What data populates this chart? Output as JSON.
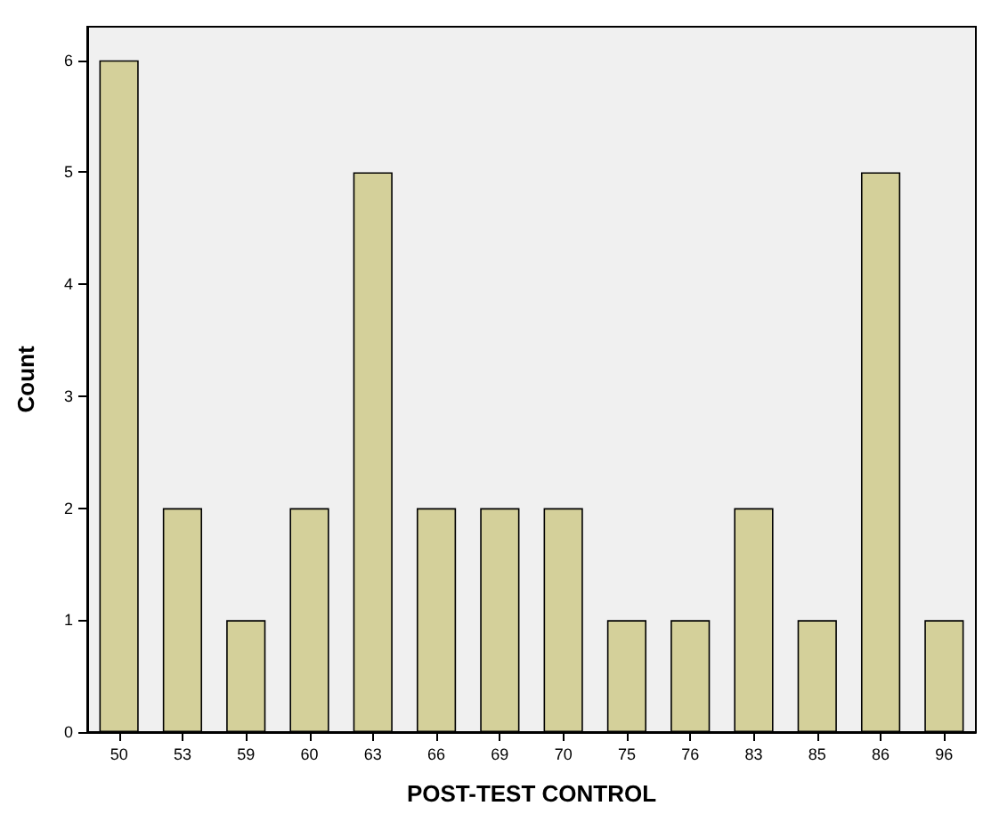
{
  "chart_data": {
    "type": "bar",
    "xlabel": "POST-TEST CONTROL",
    "ylabel": "Count",
    "categories": [
      "50",
      "53",
      "59",
      "60",
      "63",
      "66",
      "69",
      "70",
      "75",
      "76",
      "83",
      "85",
      "86",
      "96"
    ],
    "values": [
      6,
      2,
      1,
      2,
      5,
      2,
      2,
      2,
      1,
      1,
      2,
      1,
      5,
      1
    ],
    "color": "#d4d09a",
    "ylim": [
      0,
      6.3
    ],
    "yticks": [
      0,
      1,
      2,
      3,
      4,
      5,
      6
    ],
    "grid": false
  }
}
